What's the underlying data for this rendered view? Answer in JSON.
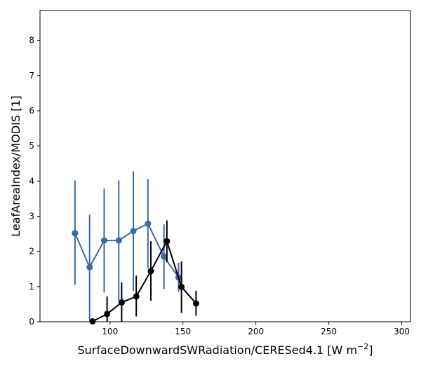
{
  "chart_data": {
    "type": "line",
    "title": "",
    "xlabel": "SurfaceDownwardSWRadiation/CERESed4.1 [W m",
    "xlabel_superscript": "−2",
    "xlabel_suffix": "]",
    "ylabel": "LeafAreaIndex/MODIS [1]",
    "xlim": [
      52,
      306
    ],
    "ylim": [
      0,
      8.85
    ],
    "xticks": [
      100,
      150,
      200,
      250,
      300
    ],
    "xtick_labels": [
      "100",
      "150",
      "200",
      "250",
      "300"
    ],
    "yticks": [
      0,
      1,
      2,
      3,
      4,
      5,
      6,
      7,
      8
    ],
    "ytick_labels": [
      "0",
      "1",
      "2",
      "3",
      "4",
      "5",
      "6",
      "7",
      "8"
    ],
    "grid": false,
    "legend": "none",
    "series": [
      {
        "color": "#3a6aa8",
        "x": [
          76,
          86,
          96,
          106,
          116,
          126,
          137,
          147
        ],
        "y": [
          2.52,
          1.55,
          2.31,
          2.31,
          2.58,
          2.79,
          1.85,
          1.26
        ],
        "y_low": [
          1.05,
          0.05,
          0.83,
          0.6,
          0.88,
          1.52,
          0.93,
          0.85
        ],
        "y_high": [
          4.02,
          3.04,
          3.79,
          4.02,
          4.28,
          4.06,
          2.77,
          1.68
        ]
      },
      {
        "color": "#000000",
        "x": [
          88,
          98,
          108,
          118,
          128,
          139,
          149,
          159
        ],
        "y": [
          0.01,
          0.22,
          0.55,
          0.72,
          1.44,
          2.29,
          0.99,
          0.52
        ],
        "y_low": [
          0.0,
          0.0,
          0.0,
          0.15,
          0.6,
          1.69,
          0.25,
          0.17
        ],
        "y_high": [
          0.02,
          0.72,
          1.12,
          1.31,
          2.29,
          2.88,
          1.72,
          0.88
        ]
      }
    ]
  }
}
